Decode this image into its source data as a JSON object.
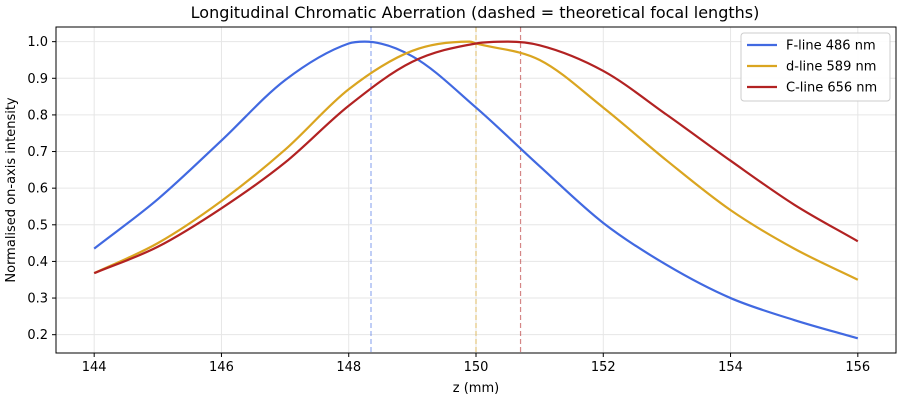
{
  "chart_data": {
    "type": "line",
    "title": "Longitudinal Chromatic Aberration  (dashed = theoretical focal lengths)",
    "xlabel": "z (mm)",
    "ylabel": "Normalised on-axis intensity",
    "xlim": [
      143.4,
      156.6
    ],
    "ylim": [
      0.15,
      1.04
    ],
    "xticks": [
      144,
      146,
      148,
      150,
      152,
      154,
      156
    ],
    "yticks": [
      0.2,
      0.3,
      0.4,
      0.5,
      0.6,
      0.7,
      0.8,
      0.9,
      1.0
    ],
    "grid": true,
    "legend_position": "top-right",
    "series": [
      {
        "name": "F-line 486 nm",
        "color": "#4169e1",
        "peak_z": 148.25,
        "focal_z": 148.35,
        "x": [
          144,
          145,
          146,
          147,
          148,
          148.25,
          149,
          150,
          151,
          152,
          153,
          154,
          155,
          156
        ],
        "y": [
          0.435,
          0.57,
          0.73,
          0.895,
          0.995,
          1.0,
          0.96,
          0.82,
          0.66,
          0.505,
          0.39,
          0.3,
          0.24,
          0.19
        ]
      },
      {
        "name": "d-line 589 nm",
        "color": "#daa520",
        "peak_z": 149.9,
        "focal_z": 150.0,
        "x": [
          144,
          145,
          146,
          147,
          148,
          149,
          149.9,
          150,
          151,
          152,
          153,
          154,
          155,
          156
        ],
        "y": [
          0.368,
          0.45,
          0.565,
          0.705,
          0.87,
          0.975,
          1.0,
          0.995,
          0.95,
          0.82,
          0.675,
          0.54,
          0.435,
          0.35
        ]
      },
      {
        "name": "C-line 656 nm",
        "color": "#b22222",
        "peak_z": 150.5,
        "focal_z": 150.7,
        "x": [
          144,
          145,
          146,
          147,
          148,
          149,
          150,
          150.5,
          151,
          152,
          153,
          154,
          155,
          156
        ],
        "y": [
          0.368,
          0.44,
          0.545,
          0.67,
          0.825,
          0.945,
          0.995,
          1.0,
          0.99,
          0.92,
          0.8,
          0.675,
          0.555,
          0.455
        ]
      }
    ]
  }
}
